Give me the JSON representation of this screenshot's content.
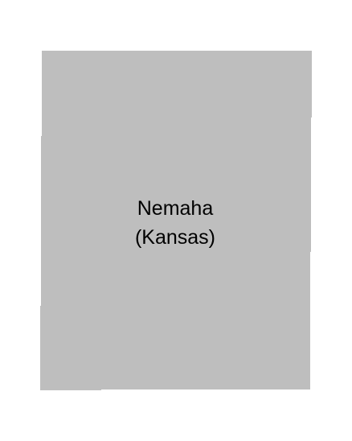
{
  "county": {
    "name": "Nemaha",
    "state": "(Kansas)",
    "fill_color": "#bebebe",
    "background_color": "#ffffff"
  }
}
